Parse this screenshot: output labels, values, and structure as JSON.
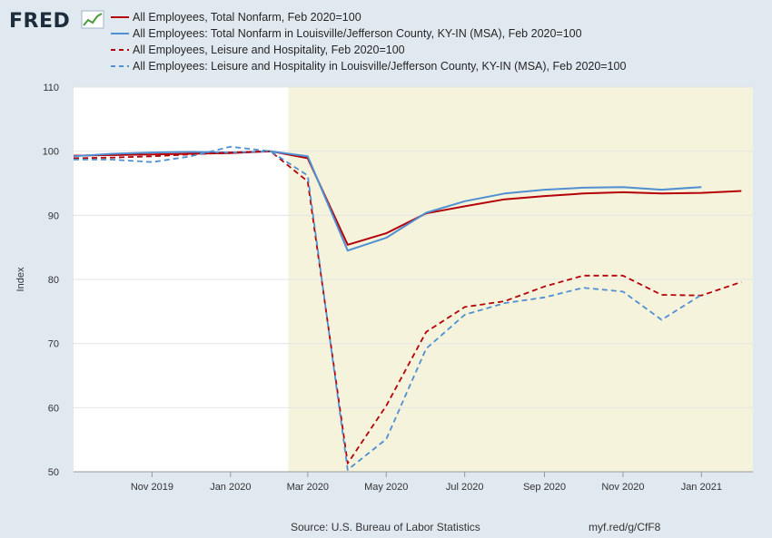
{
  "branding": {
    "logo_text": "FRED",
    "logo_icon": "trend-chart-icon"
  },
  "footer": {
    "source": "Source: U.S. Bureau of Labor Statistics",
    "link": "myf.red/g/CfF8"
  },
  "chart_data": {
    "type": "line",
    "title": "",
    "xlabel": "",
    "ylabel": "Index",
    "ylim": [
      50,
      110
    ],
    "yticks": [
      50,
      60,
      70,
      80,
      90,
      100,
      110
    ],
    "x_range": [
      "2019-09-01",
      "2021-02-10"
    ],
    "xtick_labels": [
      {
        "date": "2019-11-01",
        "label": "Nov 2019"
      },
      {
        "date": "2020-01-01",
        "label": "Jan 2020"
      },
      {
        "date": "2020-03-01",
        "label": "Mar 2020"
      },
      {
        "date": "2020-05-01",
        "label": "May 2020"
      },
      {
        "date": "2020-07-01",
        "label": "Jul 2020"
      },
      {
        "date": "2020-09-01",
        "label": "Sep 2020"
      },
      {
        "date": "2020-11-01",
        "label": "Nov 2020"
      },
      {
        "date": "2021-01-01",
        "label": "Jan 2021"
      }
    ],
    "recession_shading": {
      "start": "2020-02-15",
      "end": "2021-02-10",
      "color": "#f5f3dc"
    },
    "grid": true,
    "legend_position": "top",
    "x": [
      "2019-09-01",
      "2019-10-01",
      "2019-11-01",
      "2019-12-01",
      "2020-01-01",
      "2020-02-01",
      "2020-03-01",
      "2020-04-01",
      "2020-05-01",
      "2020-06-01",
      "2020-07-01",
      "2020-08-01",
      "2020-09-01",
      "2020-10-01",
      "2020-11-01",
      "2020-12-01",
      "2021-01-01",
      "2021-02-01"
    ],
    "series": [
      {
        "name": "All Employees, Total Nonfarm, Feb 2020=100",
        "color": "#b40008",
        "dash": "solid",
        "values": [
          99.3,
          99.4,
          99.5,
          99.6,
          99.7,
          100.0,
          98.9,
          85.4,
          87.2,
          90.3,
          91.4,
          92.5,
          93.0,
          93.4,
          93.6,
          93.4,
          93.5,
          93.8
        ]
      },
      {
        "name": "All Employees: Total Nonfarm in Louisville/Jefferson County, KY-IN (MSA), Feb 2020=100",
        "color": "#4f8fd2",
        "dash": "solid",
        "values": [
          99.2,
          99.6,
          99.8,
          99.9,
          99.8,
          100.0,
          99.2,
          84.5,
          86.5,
          90.4,
          92.2,
          93.4,
          94.0,
          94.3,
          94.4,
          94.0,
          94.4,
          null
        ]
      },
      {
        "name": "All Employees, Leisure and Hospitality, Feb 2020=100",
        "color": "#b40008",
        "dash": "dashed",
        "values": [
          98.9,
          99.0,
          99.2,
          99.5,
          99.8,
          100.0,
          95.3,
          51.3,
          60.3,
          71.8,
          75.7,
          76.6,
          78.9,
          80.6,
          80.6,
          77.6,
          77.5,
          79.6
        ]
      },
      {
        "name": "All Employees: Leisure and Hospitality in Louisville/Jefferson County, KY-IN (MSA), Feb 2020=100",
        "color": "#4f8fd2",
        "dash": "dashed",
        "values": [
          98.7,
          98.7,
          98.3,
          99.2,
          100.7,
          100.0,
          96.2,
          50.3,
          55.1,
          69.2,
          74.5,
          76.3,
          77.2,
          78.7,
          78.1,
          73.7,
          77.6,
          null
        ]
      }
    ]
  }
}
